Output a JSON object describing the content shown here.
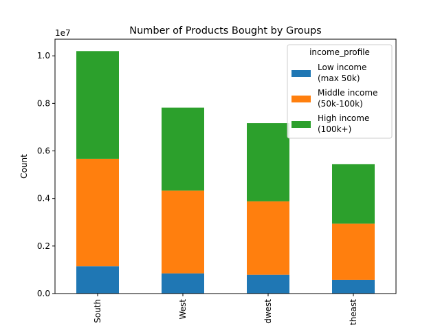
{
  "chart_data": {
    "type": "bar",
    "stacked": true,
    "title": "Number of Products Bought by Groups",
    "xlabel": "",
    "ylabel": "Count",
    "y_offset_text": "1e7",
    "ylim": [
      0,
      1.07
    ],
    "yticks": [
      "0.0",
      "0.2",
      "0.4",
      "0.6",
      "0.8",
      "1.0"
    ],
    "categories": [
      "South",
      "West",
      "Midwest",
      "Northeast"
    ],
    "visible_category_labels": [
      "South",
      "West",
      "dwest",
      "theast"
    ],
    "series": [
      {
        "name": "Low income (max 50k)",
        "legend_lines": [
          "Low income",
          "(max 50k)"
        ],
        "color": "#1f77b4",
        "values": [
          0.115,
          0.085,
          0.079,
          0.058
        ]
      },
      {
        "name": "Middle income (50k-100k)",
        "legend_lines": [
          "Middle income",
          "(50k-100k)"
        ],
        "color": "#ff7f0e",
        "values": [
          0.452,
          0.348,
          0.309,
          0.236
        ]
      },
      {
        "name": "High income (100k+)",
        "legend_lines": [
          "High income",
          "(100k+)"
        ],
        "color": "#2ca02c",
        "values": [
          0.453,
          0.349,
          0.329,
          0.25
        ]
      }
    ],
    "grid": false,
    "legend": {
      "title": "income_profile",
      "position": "top-right"
    }
  }
}
